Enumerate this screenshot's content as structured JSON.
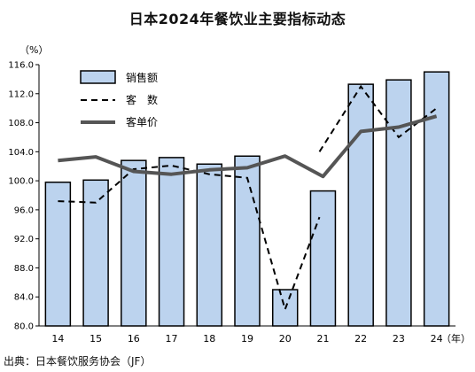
{
  "chart_data": {
    "type": "bar",
    "title": "日本2024年餐饮业主要指标动态",
    "ylabel": "（%）",
    "xlabel": "（年）",
    "ylim": [
      80.0,
      116.0
    ],
    "yticks": [
      "80.0",
      "84.0",
      "88.0",
      "92.0",
      "96.0",
      "100.0",
      "104.0",
      "108.0",
      "112.0",
      "116.0"
    ],
    "categories": [
      "14",
      "15",
      "16",
      "17",
      "18",
      "19",
      "20",
      "21",
      "22",
      "23",
      "24"
    ],
    "series": [
      {
        "name": "销售额",
        "kind": "bar",
        "color": "#bcd3ee",
        "values": [
          99.8,
          100.1,
          102.8,
          103.2,
          102.3,
          103.4,
          85.0,
          98.6,
          113.3,
          113.9,
          115.0
        ]
      },
      {
        "name": "客　数",
        "kind": "line-dashed",
        "color": "#000000",
        "values": [
          97.2,
          97.0,
          101.6,
          102.1,
          100.9,
          100.4,
          82.3,
          [
            95.0,
            104.0
          ],
          113.0,
          106.0,
          110.0
        ]
      },
      {
        "name": "客单价",
        "kind": "line",
        "color": "#555555",
        "values": [
          102.8,
          103.3,
          101.3,
          100.9,
          101.5,
          101.8,
          103.4,
          100.6,
          106.8,
          107.4,
          108.9
        ]
      }
    ],
    "legend_position": "top-left",
    "grid": false
  },
  "source": "出典：日本餐饮服务协会（JF）"
}
